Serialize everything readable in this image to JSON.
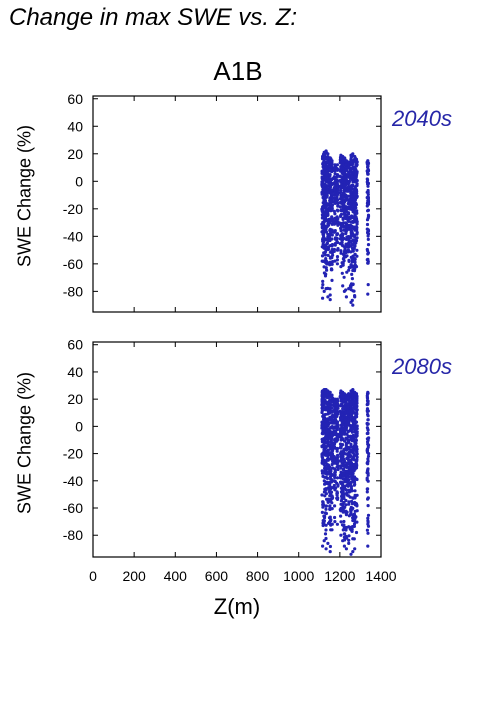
{
  "title": "Change in max SWE vs. Z:",
  "scenario": "A1B",
  "colors": {
    "points": "#2323b4",
    "period_label": "#2626a8",
    "axis": "#000000"
  },
  "chart_data": [
    {
      "type": "scatter",
      "panel_label": "2040s",
      "ylabel": "SWE Change (%)",
      "xlabel": "",
      "xlim": [
        0,
        1400
      ],
      "ylim": [
        -95,
        62
      ],
      "yticks": [
        60,
        40,
        20,
        0,
        -20,
        -40,
        -60,
        -80
      ],
      "xticks": [
        0,
        200,
        400,
        600,
        800,
        1000,
        1200,
        1400
      ],
      "show_xtick_labels": false,
      "grid": false,
      "series": [
        {
          "columns": [
            {
              "x": 1116,
              "ymin": -85,
              "ymax": 18
            },
            {
              "x": 1124,
              "ymin": -80,
              "ymax": 21
            },
            {
              "x": 1133,
              "ymin": -78,
              "ymax": 22
            },
            {
              "x": 1142,
              "ymin": -84,
              "ymax": 20
            },
            {
              "x": 1153,
              "ymin": -86,
              "ymax": 17
            },
            {
              "x": 1162,
              "ymin": -72,
              "ymax": 15
            },
            {
              "x": 1176,
              "ymin": -58,
              "ymax": 12
            },
            {
              "x": 1188,
              "ymin": -60,
              "ymax": 12
            },
            {
              "x": 1205,
              "ymin": -62,
              "ymax": 19
            },
            {
              "x": 1214,
              "ymin": -76,
              "ymax": 18
            },
            {
              "x": 1222,
              "ymin": -80,
              "ymax": 17
            },
            {
              "x": 1232,
              "ymin": -84,
              "ymax": 15
            },
            {
              "x": 1243,
              "ymin": -78,
              "ymax": 14
            },
            {
              "x": 1254,
              "ymin": -88,
              "ymax": 19
            },
            {
              "x": 1263,
              "ymin": -90,
              "ymax": 20
            },
            {
              "x": 1272,
              "ymin": -84,
              "ymax": 18
            },
            {
              "x": 1281,
              "ymin": -62,
              "ymax": 16
            },
            {
              "x": 1336,
              "ymin": -82,
              "ymax": 15
            }
          ]
        }
      ]
    },
    {
      "type": "scatter",
      "panel_label": "2080s",
      "ylabel": "SWE Change (%)",
      "xlabel": "Z(m)",
      "xlim": [
        0,
        1400
      ],
      "ylim": [
        -96,
        62
      ],
      "yticks": [
        60,
        40,
        20,
        0,
        -20,
        -40,
        -60,
        -80
      ],
      "xticks": [
        0,
        200,
        400,
        600,
        800,
        1000,
        1200,
        1400
      ],
      "show_xtick_labels": true,
      "grid": false,
      "series": [
        {
          "columns": [
            {
              "x": 1116,
              "ymin": -88,
              "ymax": 26
            },
            {
              "x": 1124,
              "ymin": -84,
              "ymax": 27
            },
            {
              "x": 1133,
              "ymin": -90,
              "ymax": 27
            },
            {
              "x": 1142,
              "ymin": -86,
              "ymax": 26
            },
            {
              "x": 1153,
              "ymin": -92,
              "ymax": 25
            },
            {
              "x": 1162,
              "ymin": -76,
              "ymax": 23
            },
            {
              "x": 1176,
              "ymin": -70,
              "ymax": 20
            },
            {
              "x": 1188,
              "ymin": -72,
              "ymax": 20
            },
            {
              "x": 1205,
              "ymin": -80,
              "ymax": 26
            },
            {
              "x": 1214,
              "ymin": -84,
              "ymax": 25
            },
            {
              "x": 1222,
              "ymin": -88,
              "ymax": 24
            },
            {
              "x": 1232,
              "ymin": -90,
              "ymax": 23
            },
            {
              "x": 1243,
              "ymin": -86,
              "ymax": 24
            },
            {
              "x": 1254,
              "ymin": -94,
              "ymax": 26
            },
            {
              "x": 1263,
              "ymin": -92,
              "ymax": 27
            },
            {
              "x": 1272,
              "ymin": -90,
              "ymax": 25
            },
            {
              "x": 1281,
              "ymin": -78,
              "ymax": 24
            },
            {
              "x": 1336,
              "ymin": -88,
              "ymax": 25
            }
          ]
        }
      ]
    }
  ]
}
